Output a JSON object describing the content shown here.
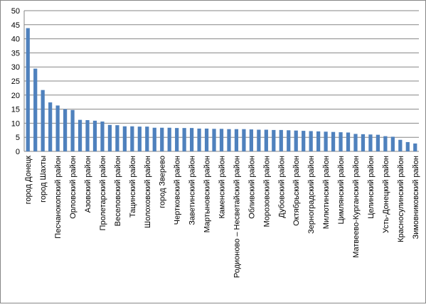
{
  "chart_data": {
    "type": "bar",
    "color": "#4f81bd",
    "grid": true,
    "ylim": [
      0,
      50
    ],
    "yticks": [
      0,
      5,
      10,
      15,
      20,
      25,
      30,
      35,
      40,
      45,
      50
    ],
    "categories": [
      "город Донецк",
      null,
      "город Шахты",
      null,
      "Песчанокопский район",
      null,
      "Орловский район",
      null,
      "Азовский район",
      null,
      "Пролетарский район",
      null,
      "Веселовский район",
      null,
      "Тацинский район",
      null,
      "Шолоховский район",
      null,
      "город Зверево",
      null,
      "Чертковский район",
      null,
      "Заветинский район",
      null,
      "Мартыновский район",
      null,
      "Каменский район",
      null,
      "Родионово – Несветайский район",
      null,
      "Обливский район",
      null,
      "Морозовский район",
      null,
      "Дубовский район",
      null,
      "Октябрьский район",
      null,
      "Зерноградский район",
      null,
      "Милютинский район",
      null,
      "Цимлянский район",
      null,
      "Матвеево-Курганский район",
      null,
      "Целинский район",
      null,
      "Усть-Донецкий район",
      null,
      "Красносулинский район",
      null,
      "Зимовниковский район"
    ],
    "values": [
      43.8,
      29.4,
      21.8,
      17.4,
      16.3,
      15.0,
      14.7,
      11.2,
      11.1,
      10.9,
      10.6,
      9.4,
      9.3,
      8.9,
      8.9,
      8.8,
      8.8,
      8.4,
      8.4,
      8.4,
      8.3,
      8.3,
      8.3,
      8.1,
      8.1,
      8.0,
      8.0,
      7.9,
      7.9,
      7.9,
      7.8,
      7.7,
      7.7,
      7.6,
      7.6,
      7.5,
      7.4,
      7.3,
      7.2,
      7.1,
      7.0,
      6.9,
      6.8,
      6.7,
      6.2,
      6.1,
      6.0,
      5.9,
      5.4,
      5.2,
      4.1,
      3.3,
      2.8
    ]
  }
}
